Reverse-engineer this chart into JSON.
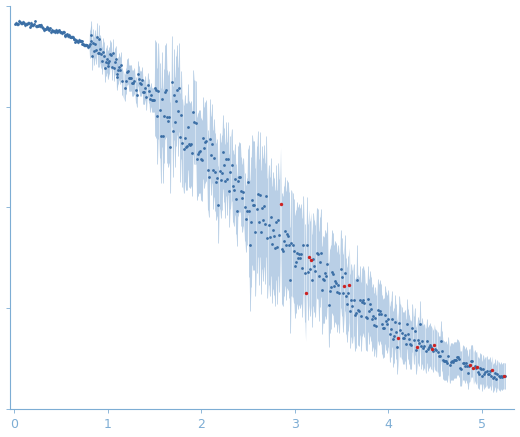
{
  "title": "",
  "xlabel": "",
  "ylabel": "",
  "xlim": [
    -0.05,
    5.35
  ],
  "ylim": [
    -0.02,
    1.05
  ],
  "x_ticks": [
    0,
    1,
    2,
    3,
    4,
    5
  ],
  "dot_color": "#3a6ea5",
  "dot_color_outlier": "#cc2222",
  "error_color": "#a8c4e0",
  "background_color": "#ffffff",
  "axis_color": "#7dadd4",
  "tick_color": "#7dadd4",
  "dot_size": 4,
  "n_points_dense": 120,
  "n_points_sparse": 350,
  "I0": 1.0,
  "Rg": 0.55,
  "noise_low": 0.003,
  "noise_high": 0.04,
  "sigma_low": 0.005,
  "sigma_high": 0.025,
  "n_outliers": 15
}
